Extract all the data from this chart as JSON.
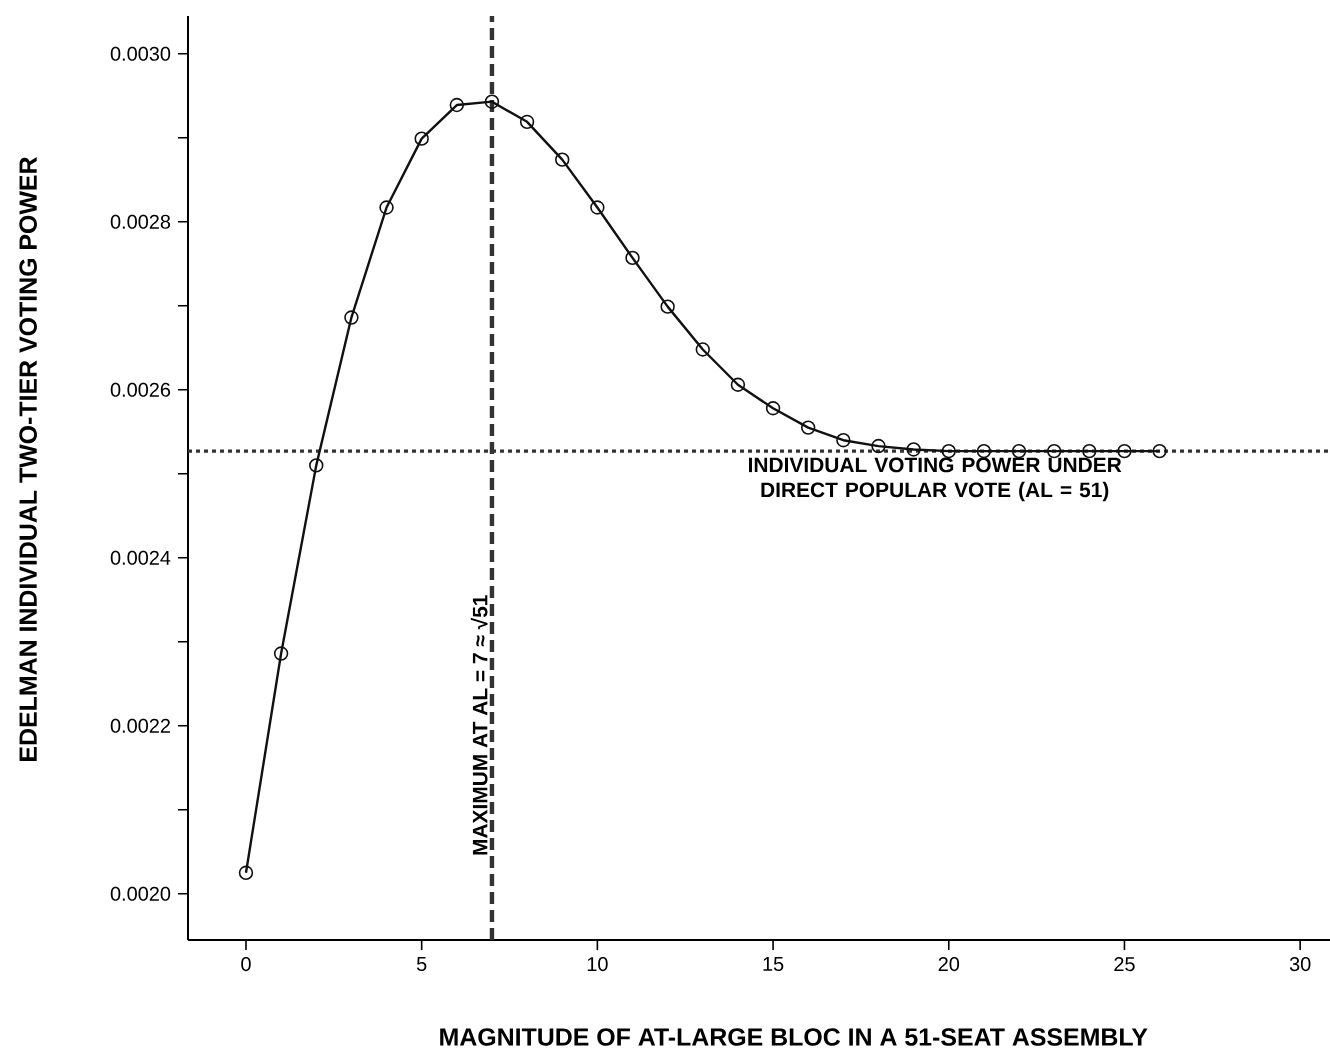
{
  "chart_data": {
    "type": "line",
    "xlabel": "MAGNITUDE OF AT-LARGE BLOC IN A 51-SEAT ASSEMBLY",
    "ylabel": "EDELMAN INDIVIDUAL TWO-TIER VOTING POWER",
    "x": [
      0,
      1,
      2,
      3,
      4,
      5,
      6,
      7,
      8,
      9,
      10,
      11,
      12,
      13,
      14,
      15,
      16,
      17,
      18,
      19,
      20,
      21,
      22,
      23,
      24,
      25,
      26
    ],
    "series": [
      {
        "color": "#111111",
        "values": [
          0.002025,
          0.002286,
          0.00251,
          0.002686,
          0.002817,
          0.002899,
          0.002939,
          0.002943,
          0.002919,
          0.002874,
          0.002817,
          0.002757,
          0.002699,
          0.002648,
          0.002606,
          0.002578,
          0.002555,
          0.00254,
          0.002533,
          0.002529,
          0.002527,
          0.002527,
          0.002527,
          0.002527,
          0.002527,
          0.002527,
          0.002527
        ]
      }
    ],
    "marker": "circle",
    "line_style": "solid",
    "grid": false,
    "xlim": [
      -1.65,
      30.85
    ],
    "ylim": [
      0.001945,
      0.003045
    ],
    "xticks": [
      0,
      5,
      10,
      15,
      20,
      25,
      30
    ],
    "yticks": [
      {
        "value": 0.002,
        "label": "0.0020"
      },
      {
        "value": 0.0021,
        "label": null
      },
      {
        "value": 0.0022,
        "label": "0.0022"
      },
      {
        "value": 0.0023,
        "label": null
      },
      {
        "value": 0.0024,
        "label": "0.0024"
      },
      {
        "value": 0.0025,
        "label": null
      },
      {
        "value": 0.0026,
        "label": "0.0026"
      },
      {
        "value": 0.0027,
        "label": null
      },
      {
        "value": 0.0028,
        "label": "0.0028"
      },
      {
        "value": 0.0029,
        "label": null
      },
      {
        "value": 0.003,
        "label": "0.0030"
      }
    ],
    "ref_lines": [
      {
        "axis": "x",
        "value": 7,
        "label": "MAXIMUM AT AL = 7 ≈ √51",
        "line_style": "dashed",
        "color": "#333333"
      },
      {
        "axis": "y",
        "value": 0.002527,
        "line_style": "dotted",
        "color": "#333333"
      }
    ],
    "annotations": [
      {
        "text": "INDIVIDUAL VOTING POWER UNDER DIRECT POPULAR VOTE (AL = 51)",
        "x": 19.6,
        "y": 0.002527
      }
    ]
  }
}
